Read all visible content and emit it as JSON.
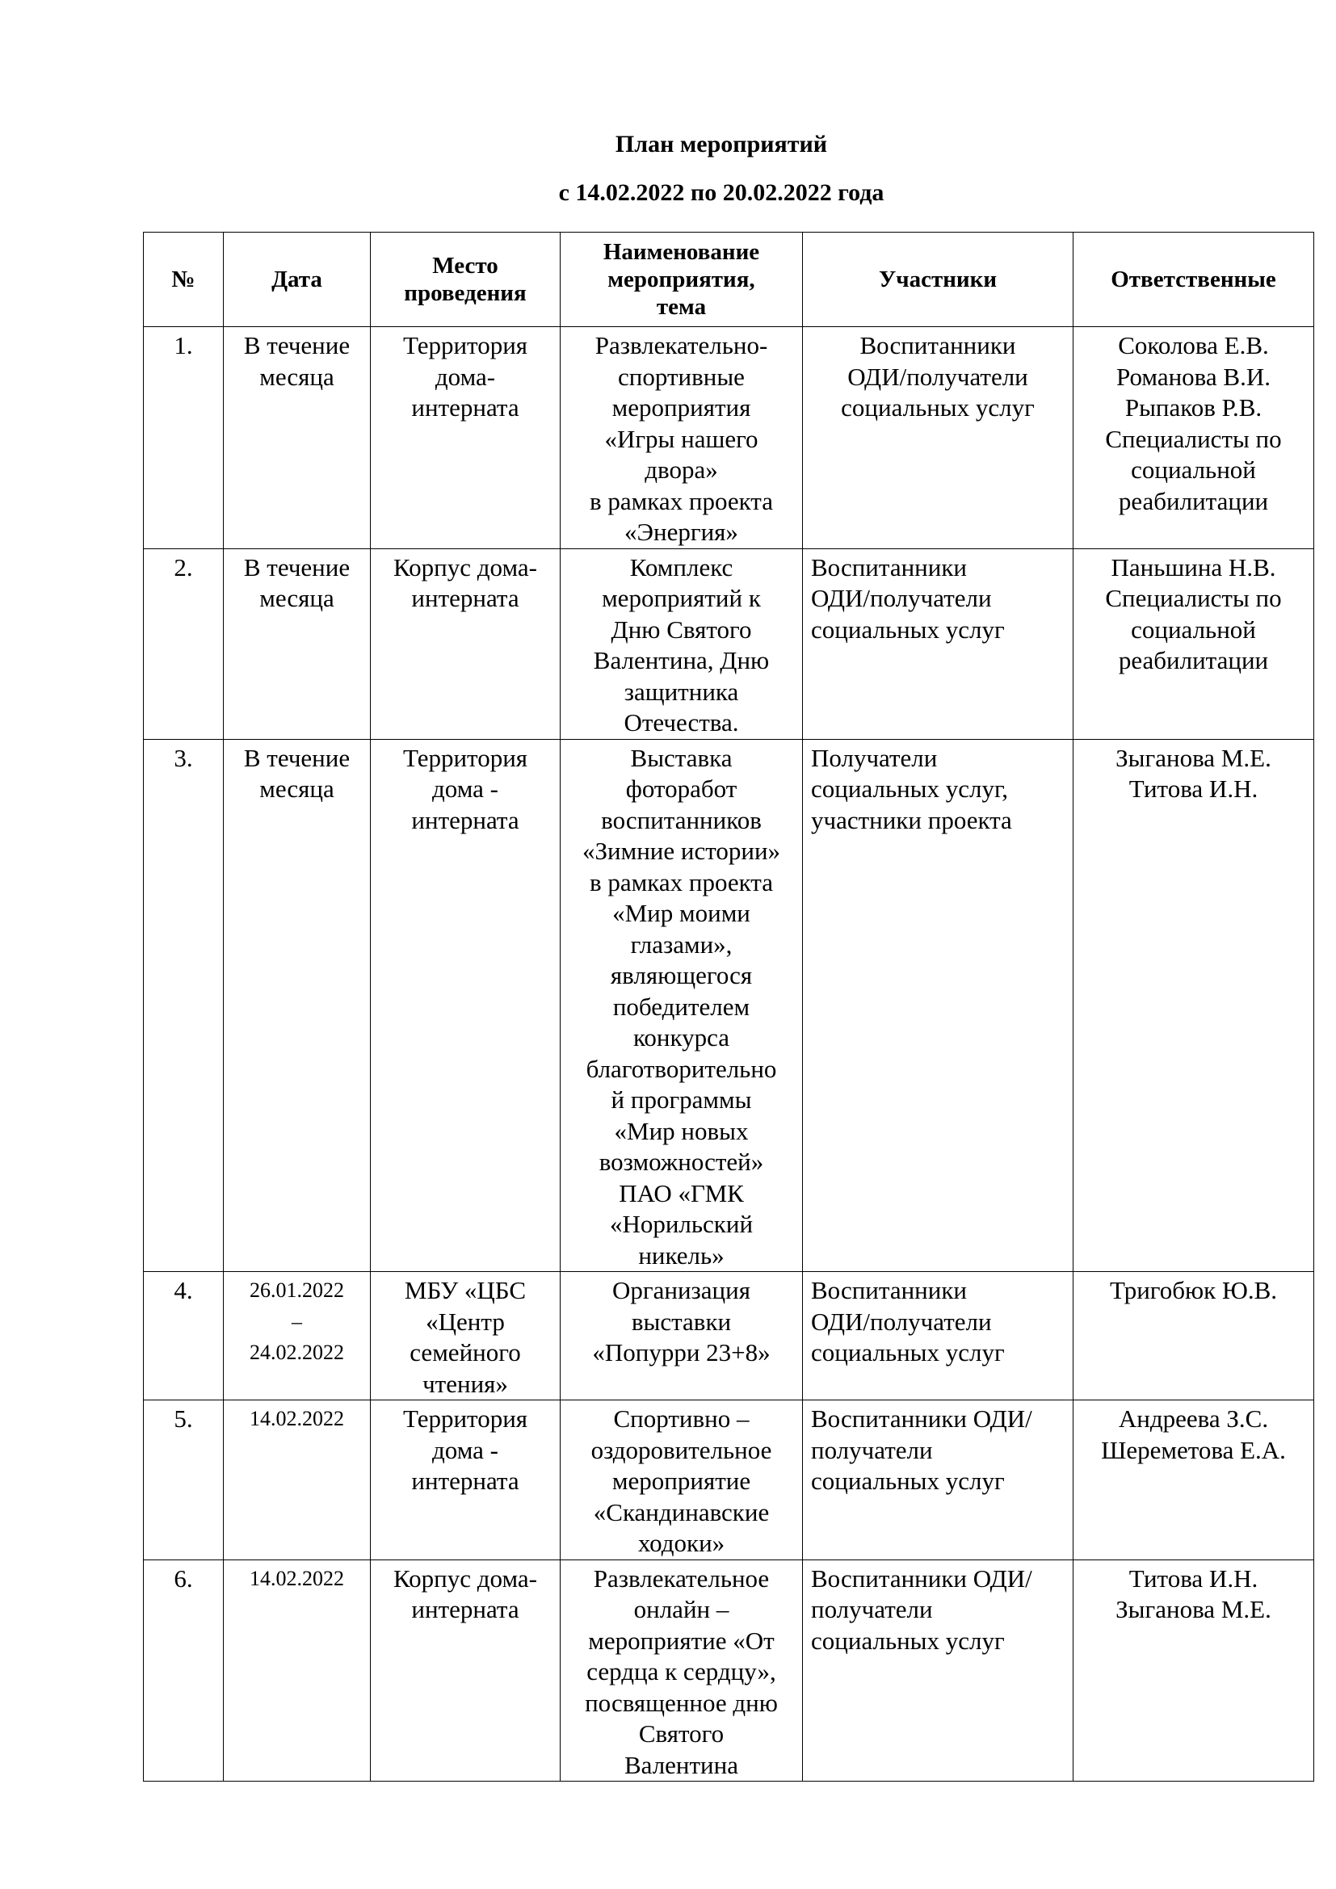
{
  "title": "План мероприятий",
  "subtitle": "с 14.02.2022 по 20.02.2022 года",
  "table": {
    "headers": [
      "№",
      "Дата",
      "Место\nпроведения",
      "Наименование\nмероприятия,\nтема",
      "Участники",
      "Ответственные"
    ],
    "rows": [
      [
        "1.",
        "В течение\nмесяца",
        "Территория\nдома-\nинтерната",
        "Развлекательно-\nспортивные\nмероприятия\n«Игры нашего\nдвора»\nв рамках проекта\n«Энергия»",
        "Воспитанники\nОДИ/получатели\nсоциальных услуг",
        "Соколова Е.В.\nРоманова В.И.\nРыпаков Р.В.\nСпециалисты по\nсоциальной\nреабилитации"
      ],
      [
        "2.",
        "В течение\nмесяца",
        "Корпус дома-\nинтерната",
        "Комплекс\nмероприятий   к\nДню Святого\nВалентина, Дню\nзащитника\nОтечества.",
        "Воспитанники\nОДИ/получатели\nсоциальных услуг",
        "Паньшина Н.В.\nСпециалисты по\nсоциальной\nреабилитации"
      ],
      [
        "3.",
        "В течение\nмесяца",
        "Территория\nдома -\nинтерната",
        "Выставка\nфоторабот\nвоспитанников\n«Зимние истории»\nв рамках проекта\n«Мир моими\nглазами»,\nявляющегося\nпобедителем\nконкурса\nблаготворительно\nй программы\n«Мир новых\nвозможностей»\nПАО «ГМК\n«Норильский\nникель»",
        "Получатели\nсоциальных услуг,\nучастники проекта",
        "Зыганова М.Е.\nТитова И.Н."
      ],
      [
        "4.",
        "26.01.2022\n–\n24.02.2022",
        "МБУ «ЦБС\n«Центр\nсемейного\nчтения»",
        "Организация\nвыставки\n«Попурри 23+8»",
        "Воспитанники\nОДИ/получатели\nсоциальных услуг",
        "Тригобюк Ю.В."
      ],
      [
        "5.",
        "14.02.2022",
        "Территория\nдома -\nинтерната",
        "Спортивно –\nоздоровительное\nмероприятие\n«Скандинавские\nходоки»",
        "Воспитанники ОДИ/\nполучатели\nсоциальных услуг",
        "Андреева З.С.\nШереметова Е.А."
      ],
      [
        "6.",
        "14.02.2022",
        "Корпус дома-\nинтерната",
        "Развлекательное\nонлайн –\nмероприятие «От\nсердца к сердцу»,\nпосвященное дню\nСвятого\nВалентина",
        "Воспитанники ОДИ/\nполучатели\nсоциальных услуг",
        "Титова И.Н.\nЗыганова М.Е."
      ]
    ]
  }
}
